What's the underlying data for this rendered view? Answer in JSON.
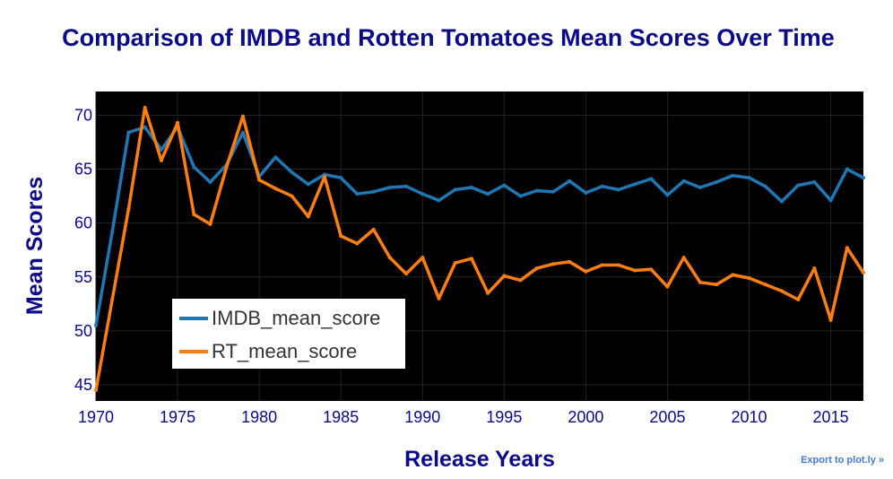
{
  "chart_data": {
    "type": "line",
    "title": "Comparison of IMDB and Rotten Tomatoes Mean Scores Over Time",
    "xlabel": "Release Years",
    "ylabel": "Mean Scores",
    "xlim": [
      1970,
      2017
    ],
    "ylim": [
      43.5,
      72.2
    ],
    "x_ticks": [
      1970,
      1975,
      1980,
      1985,
      1990,
      1995,
      2000,
      2005,
      2010,
      2015
    ],
    "y_ticks": [
      45,
      50,
      55,
      60,
      65,
      70
    ],
    "legend_position": "bottom-left",
    "x": [
      1970,
      1971,
      1972,
      1973,
      1974,
      1975,
      1976,
      1977,
      1978,
      1979,
      1980,
      1981,
      1982,
      1983,
      1984,
      1985,
      1986,
      1987,
      1988,
      1989,
      1990,
      1991,
      1992,
      1993,
      1994,
      1995,
      1996,
      1997,
      1998,
      1999,
      2000,
      2001,
      2002,
      2003,
      2004,
      2005,
      2006,
      2007,
      2008,
      2009,
      2010,
      2011,
      2012,
      2013,
      2014,
      2015,
      2016,
      2017
    ],
    "series": [
      {
        "name": "IMDB_mean_score",
        "color": "#1f77b4",
        "values": [
          50.5,
          59.2,
          68.4,
          68.9,
          66.8,
          68.9,
          65.2,
          63.8,
          65.4,
          68.4,
          64.3,
          66.1,
          64.7,
          63.6,
          64.5,
          64.2,
          62.7,
          62.9,
          63.3,
          63.4,
          62.7,
          62.1,
          63.1,
          63.3,
          62.7,
          63.5,
          62.5,
          63.0,
          62.9,
          63.9,
          62.8,
          63.4,
          63.1,
          63.6,
          64.1,
          62.6,
          63.9,
          63.3,
          63.8,
          64.4,
          64.2,
          63.4,
          62.0,
          63.5,
          63.8,
          62.1,
          65.0,
          64.2
        ]
      },
      {
        "name": "RT_mean_score",
        "color": "#ff7f0e",
        "values": [
          44.5,
          52.9,
          61.3,
          70.7,
          65.8,
          69.3,
          60.8,
          59.9,
          65.2,
          69.9,
          64.0,
          63.2,
          62.5,
          60.6,
          64.3,
          58.8,
          58.1,
          59.4,
          56.8,
          55.3,
          56.8,
          53.0,
          56.3,
          56.7,
          53.5,
          55.1,
          54.7,
          55.8,
          56.2,
          56.4,
          55.5,
          56.1,
          56.1,
          55.6,
          55.7,
          54.1,
          56.8,
          54.5,
          54.3,
          55.2,
          54.9,
          54.3,
          53.7,
          52.9,
          55.8,
          51.0,
          57.7,
          55.4
        ]
      }
    ]
  },
  "export_label": "Export to plot.ly »"
}
